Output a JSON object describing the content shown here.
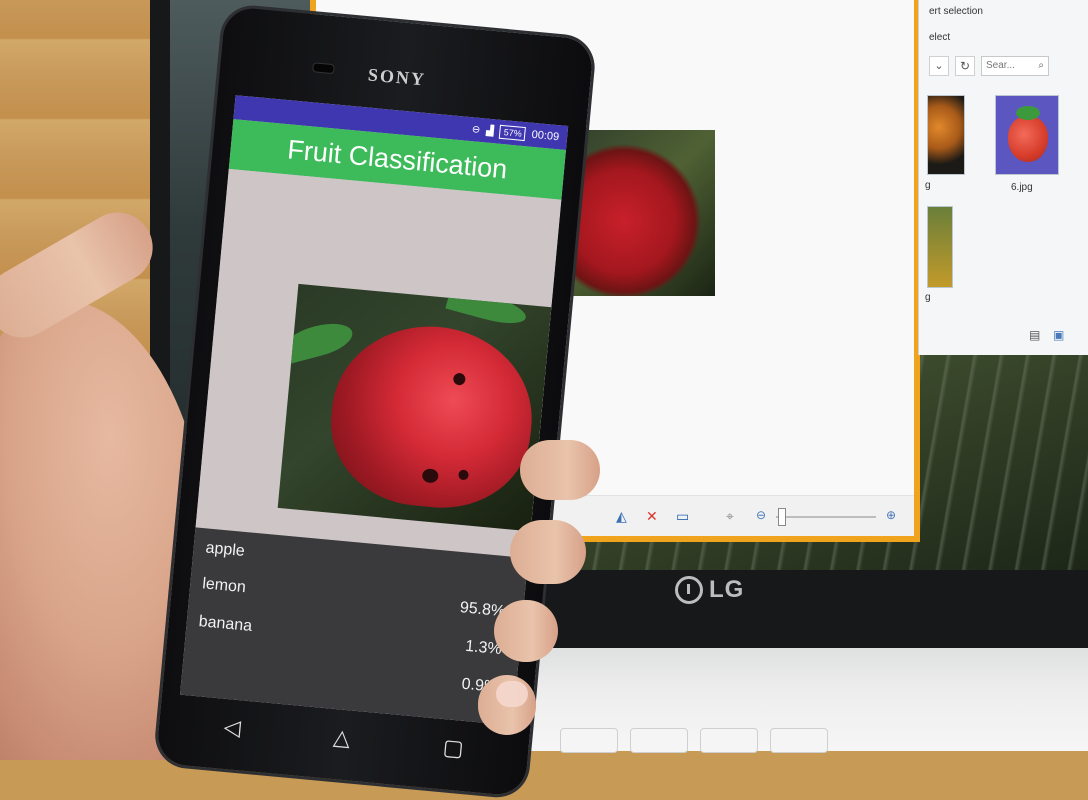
{
  "app": {
    "title": "Fruit Classification",
    "status_time": "00:09",
    "battery": "57%",
    "brand": "SONY"
  },
  "results": [
    {
      "label": "apple",
      "value": ""
    },
    {
      "label": "lemon",
      "value": "95.8%"
    },
    {
      "label": "banana",
      "value": "1.3%"
    },
    {
      "label": "",
      "value": "0.9%"
    }
  ],
  "nav": {
    "back": "◁",
    "home": "△",
    "recents": "▢"
  },
  "explorer": {
    "line1": "ert selection",
    "line2": "elect",
    "search_placeholder": "Sear...",
    "thumb_6_label": "6.jpg",
    "thumb_a_label": "g",
    "thumb_b_label": "g"
  },
  "laptop": {
    "brand": "LG"
  },
  "colors": {
    "status_bar": "#3f37b0",
    "app_bar": "#3dbb5a",
    "results_bg": "#3a393b",
    "viewer_border": "#f0a41d"
  }
}
